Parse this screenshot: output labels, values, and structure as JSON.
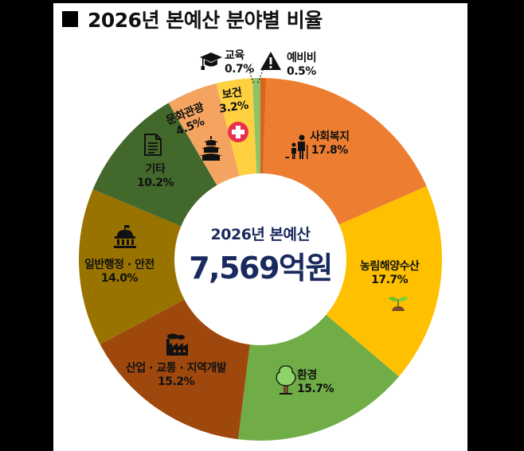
{
  "title": "■ 2026년 본예산 분야별 비율",
  "title_text": "2026년 본예산 분야별 비율",
  "center": {
    "line1": "2026년 본예산",
    "line2": "7,569억원"
  },
  "colors": {
    "center_text": "#1a2a5e",
    "background": "#000000",
    "panel": "#ffffff"
  },
  "chart_data": {
    "type": "pie",
    "subtype": "donut",
    "title": "2026년 본예산 분야별 비율",
    "center_label": "2026년 본예산 7,569억원",
    "start_angle": "12 o'clock, clockwise",
    "categories": [
      "예비비",
      "사회복지",
      "농림해양수산",
      "환경",
      "산업·교통·지역개발",
      "일반행정·안전",
      "기타",
      "문화관광",
      "보건",
      "교육"
    ],
    "values": [
      0.5,
      17.8,
      17.7,
      15.7,
      15.2,
      14.0,
      10.2,
      4.5,
      3.2,
      0.7
    ],
    "unit": "%",
    "colors": [
      "#d9651c",
      "#ed7d31",
      "#ffc000",
      "#70ad47",
      "#9e480e",
      "#997300",
      "#43682b",
      "#f4a460",
      "#ffd040",
      "#8fc26a"
    ]
  },
  "slices": [
    {
      "name": "예비비",
      "pct": "0.5%",
      "color": "#d9651c",
      "icon": "warning-icon"
    },
    {
      "name": "사회복지",
      "pct": "17.8%",
      "color": "#ed7d31",
      "icon": "elderly-family-icon"
    },
    {
      "name": "농림해양수산",
      "pct": "17.7%",
      "color": "#ffc000",
      "icon": "sprout-icon"
    },
    {
      "name": "환경",
      "pct": "15.7%",
      "color": "#70ad47",
      "icon": "tree-icon"
    },
    {
      "name": "산업 · 교통 · 지역개발",
      "pct": "15.2%",
      "color": "#9e480e",
      "icon": "factory-icon"
    },
    {
      "name": "일반행정 · 안전",
      "pct": "14.0%",
      "color": "#997300",
      "icon": "government-building-icon"
    },
    {
      "name": "기타",
      "pct": "10.2%",
      "color": "#43682b",
      "icon": "document-icon"
    },
    {
      "name": "문화관광",
      "pct": "4.5%",
      "color": "#f0a060",
      "icon": "pagoda-icon"
    },
    {
      "name": "보건",
      "pct": "3.2%",
      "color": "#ffd040",
      "icon": "medical-cross-icon"
    },
    {
      "name": "교육",
      "pct": "0.7%",
      "color": "#8fc26a",
      "icon": "graduation-cap-icon"
    }
  ]
}
